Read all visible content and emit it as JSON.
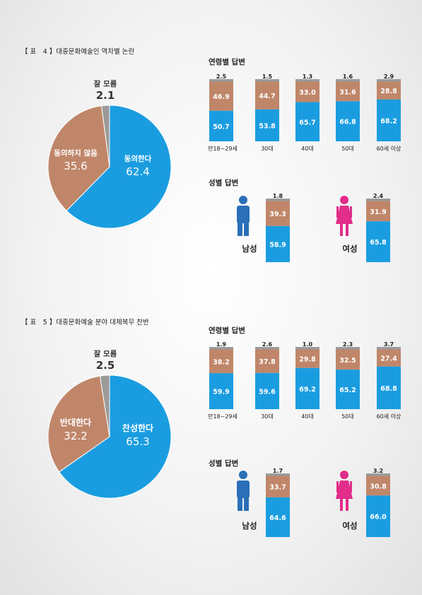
{
  "colors": {
    "blue": "#1a9de0",
    "tan": "#c0866a",
    "gray": "#9a9a9a",
    "male": "#2a6fb8",
    "female": "#e22d8a"
  },
  "figures": [
    {
      "title": "【 표　4 】대중문화예술인 역차별 논란",
      "pie": {
        "slices": [
          {
            "label": "동의한다",
            "value": 62.4,
            "value_text": "62.4"
          },
          {
            "label": "동의하지 않음",
            "value": 35.6,
            "value_text": "35.6"
          },
          {
            "label": "잘 모름",
            "value": 2.1,
            "value_text": "2.1"
          }
        ]
      },
      "age": {
        "title": "연령별 답변",
        "groups": [
          {
            "label": "만18~29세",
            "blue": "50.7",
            "tan": "46.9",
            "gray": "2.5"
          },
          {
            "label": "30대",
            "blue": "53.8",
            "tan": "44.7",
            "gray": "1.5"
          },
          {
            "label": "40대",
            "blue": "65.7",
            "tan": "33.0",
            "gray": "1.3"
          },
          {
            "label": "50대",
            "blue": "66.8",
            "tan": "31.6",
            "gray": "1.6"
          },
          {
            "label": "60세 이상",
            "blue": "68.2",
            "tan": "28.8",
            "gray": "2.9"
          }
        ]
      },
      "gender": {
        "title": "성별 답변",
        "groups": [
          {
            "label": "남성",
            "blue": "58.9",
            "tan": "39.3",
            "gray": "1.8"
          },
          {
            "label": "여성",
            "blue": "65.8",
            "tan": "31.9",
            "gray": "2.4"
          }
        ]
      }
    },
    {
      "title": "【 표　5 】대중문화예술 분야 대체복무 찬반",
      "pie": {
        "slices": [
          {
            "label": "찬성한다",
            "value": 65.3,
            "value_text": "65.3"
          },
          {
            "label": "반대한다",
            "value": 32.2,
            "value_text": "32.2"
          },
          {
            "label": "잘 모름",
            "value": 2.5,
            "value_text": "2.5"
          }
        ]
      },
      "age": {
        "title": "연령별 답변",
        "groups": [
          {
            "label": "만18~29세",
            "blue": "59.9",
            "tan": "38.2",
            "gray": "1.9"
          },
          {
            "label": "30대",
            "blue": "59.6",
            "tan": "37.8",
            "gray": "2.6"
          },
          {
            "label": "40대",
            "blue": "69.2",
            "tan": "29.8",
            "gray": "1.0"
          },
          {
            "label": "50대",
            "blue": "65.2",
            "tan": "32.5",
            "gray": "2.3"
          },
          {
            "label": "60세 이상",
            "blue": "68.8",
            "tan": "27.4",
            "gray": "3.7"
          }
        ]
      },
      "gender": {
        "title": "성별 답변",
        "groups": [
          {
            "label": "남성",
            "blue": "64.6",
            "tan": "33.7",
            "gray": "1.7"
          },
          {
            "label": "여성",
            "blue": "66.0",
            "tan": "30.8",
            "gray": "3.2"
          }
        ]
      }
    }
  ],
  "chart_data": [
    {
      "type": "pie",
      "title": "【 표　4 】대중문화예술인 역차별 논란",
      "categories": [
        "동의한다",
        "동의하지 않음",
        "잘 모름"
      ],
      "values": [
        62.4,
        35.6,
        2.1
      ]
    },
    {
      "type": "bar",
      "title": "연령별 답변",
      "categories": [
        "만18~29세",
        "30대",
        "40대",
        "50대",
        "60세 이상"
      ],
      "series": [
        {
          "values": [
            50.7,
            53.8,
            65.7,
            66.8,
            68.2
          ]
        },
        {
          "values": [
            46.9,
            44.7,
            33.0,
            31.6,
            28.8
          ]
        },
        {
          "values": [
            2.5,
            1.5,
            1.3,
            1.6,
            2.9
          ]
        }
      ]
    },
    {
      "type": "bar",
      "title": "성별 답변",
      "categories": [
        "남성",
        "여성"
      ],
      "series": [
        {
          "values": [
            58.9,
            65.8
          ]
        },
        {
          "values": [
            39.3,
            31.9
          ]
        },
        {
          "values": [
            1.8,
            2.4
          ]
        }
      ]
    },
    {
      "type": "pie",
      "title": "【 표　5 】대중문화예술 분야 대체복무 찬반",
      "categories": [
        "찬성한다",
        "반대한다",
        "잘 모름"
      ],
      "values": [
        65.3,
        32.2,
        2.5
      ]
    },
    {
      "type": "bar",
      "title": "연령별 답변",
      "categories": [
        "만18~29세",
        "30대",
        "40대",
        "50대",
        "60세 이상"
      ],
      "series": [
        {
          "values": [
            59.9,
            59.6,
            69.2,
            65.2,
            68.8
          ]
        },
        {
          "values": [
            38.2,
            37.8,
            29.8,
            32.5,
            27.4
          ]
        },
        {
          "values": [
            1.9,
            2.6,
            1.0,
            2.3,
            3.7
          ]
        }
      ]
    },
    {
      "type": "bar",
      "title": "성별 답변",
      "categories": [
        "남성",
        "여성"
      ],
      "series": [
        {
          "values": [
            64.6,
            66.0
          ]
        },
        {
          "values": [
            33.7,
            30.8
          ]
        },
        {
          "values": [
            1.7,
            3.2
          ]
        }
      ]
    }
  ]
}
